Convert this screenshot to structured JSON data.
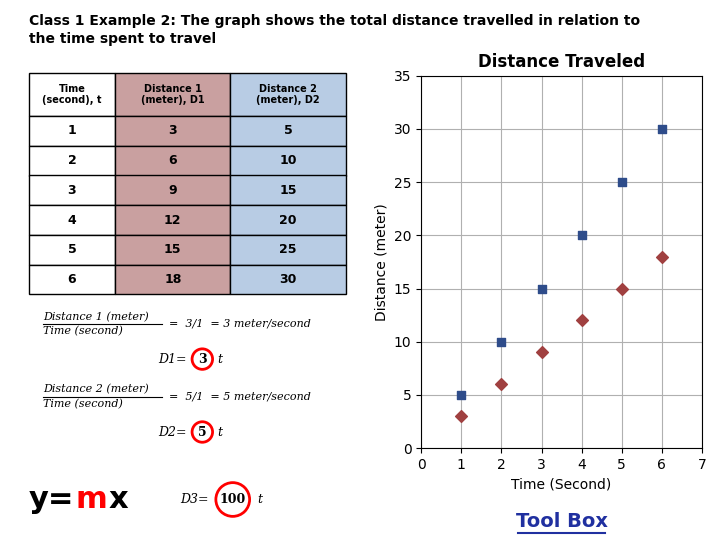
{
  "title": "Class 1 Example 2: The graph shows the total distance travelled in relation to\nthe time spent to travel",
  "table": {
    "columns": [
      "Time\n(second), t",
      "Distance 1\n(meter), D1",
      "Distance 2\n(meter), D2"
    ],
    "colors": [
      "#ffffff",
      "#c9a0a0",
      "#b8cce4"
    ],
    "rows": [
      [
        1,
        3,
        5
      ],
      [
        2,
        6,
        10
      ],
      [
        3,
        9,
        15
      ],
      [
        4,
        12,
        20
      ],
      [
        5,
        15,
        25
      ],
      [
        6,
        18,
        30
      ]
    ]
  },
  "annotations": [
    {
      "type": "fraction",
      "numerator": "Distance 1 (meter)",
      "denominator": "Time (second)",
      "text": "=  3/1  = 3 meter/second"
    },
    {
      "type": "formula",
      "parts": [
        "D1=",
        "3",
        "t"
      ],
      "color": "red"
    },
    {
      "type": "fraction",
      "numerator": "Distance 2 (meter)",
      "denominator": "Time (second)",
      "text": "=  5/1  = 5 meter/second"
    },
    {
      "type": "formula",
      "parts": [
        "D2=",
        "5",
        "t"
      ],
      "color": "red"
    },
    {
      "type": "equation",
      "parts": [
        "y=",
        "m",
        "x"
      ],
      "color": "red"
    },
    {
      "type": "formula",
      "parts": [
        "D3=",
        "100",
        "t"
      ],
      "color": "red"
    },
    {
      "type": "label",
      "text": "Tool Box",
      "color": "#2030a0"
    }
  ],
  "chart_data": {
    "type": "scatter",
    "title": "Distance Traveled",
    "x_label": "Time (Second)",
    "y_label": "Distance (meter)",
    "x": [
      1,
      2,
      3,
      4,
      5,
      6
    ],
    "series": [
      {
        "color": "#2e4c8a",
        "marker": "square",
        "values": [
          5,
          10,
          15,
          20,
          25,
          30
        ]
      },
      {
        "color": "#a04040",
        "marker": "diamond",
        "values": [
          3,
          6,
          9,
          12,
          15,
          18
        ]
      }
    ],
    "xlim": [
      0,
      7
    ],
    "ylim": [
      0,
      35
    ],
    "xticks": [
      0,
      1,
      2,
      3,
      4,
      5,
      6,
      7
    ],
    "yticks": [
      0,
      5,
      10,
      15,
      20,
      25,
      30,
      35
    ],
    "grid": true
  }
}
